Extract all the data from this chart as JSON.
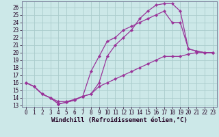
{
  "xlabel": "Windchill (Refroidissement éolien,°C)",
  "bg_color": "#cce8e8",
  "grid_color": "#aacccc",
  "line_color": "#993399",
  "xlim": [
    -0.5,
    23.5
  ],
  "ylim": [
    12.8,
    26.8
  ],
  "xticks": [
    0,
    1,
    2,
    3,
    4,
    5,
    6,
    7,
    8,
    9,
    10,
    11,
    12,
    13,
    14,
    15,
    16,
    17,
    18,
    19,
    20,
    21,
    22,
    23
  ],
  "yticks": [
    13,
    14,
    15,
    16,
    17,
    18,
    19,
    20,
    21,
    22,
    23,
    24,
    25,
    26
  ],
  "line1_x": [
    0,
    1,
    2,
    3,
    4,
    5,
    6,
    7,
    8,
    9,
    10,
    11,
    12,
    13,
    14,
    15,
    16,
    17,
    18,
    19,
    20,
    21,
    22,
    23
  ],
  "line1_y": [
    16,
    15.5,
    14.5,
    14.0,
    13.2,
    13.4,
    13.7,
    14.2,
    14.5,
    16.0,
    19.5,
    21.0,
    22.0,
    23.0,
    24.5,
    25.5,
    26.3,
    26.5,
    26.5,
    25.5,
    20.5,
    20.2,
    20.0,
    20.0
  ],
  "line2_x": [
    0,
    1,
    2,
    3,
    4,
    5,
    6,
    7,
    8,
    9,
    10,
    11,
    12,
    13,
    14,
    15,
    16,
    17,
    18,
    19,
    20,
    21,
    22,
    23
  ],
  "line2_y": [
    16,
    15.5,
    14.5,
    14.0,
    13.5,
    13.5,
    13.8,
    14.2,
    17.5,
    19.5,
    21.5,
    22.0,
    23.0,
    23.5,
    24.0,
    24.5,
    25.0,
    25.5,
    24.0,
    24.0,
    20.5,
    20.2,
    20.0,
    20.0
  ],
  "line3_x": [
    0,
    1,
    2,
    3,
    4,
    5,
    6,
    7,
    8,
    9,
    10,
    11,
    12,
    13,
    14,
    15,
    16,
    17,
    18,
    19,
    20,
    21,
    22,
    23
  ],
  "line3_y": [
    16,
    15.5,
    14.5,
    14.0,
    13.2,
    13.4,
    13.7,
    14.2,
    14.5,
    15.5,
    16.0,
    16.5,
    17.0,
    17.5,
    18.0,
    18.5,
    19.0,
    19.5,
    19.5,
    19.5,
    19.8,
    20.0,
    20.0,
    20.0
  ],
  "marker": "D",
  "marker_size": 2.2,
  "linewidth": 0.9,
  "tick_fontsize": 5.5,
  "label_fontsize": 6.5
}
